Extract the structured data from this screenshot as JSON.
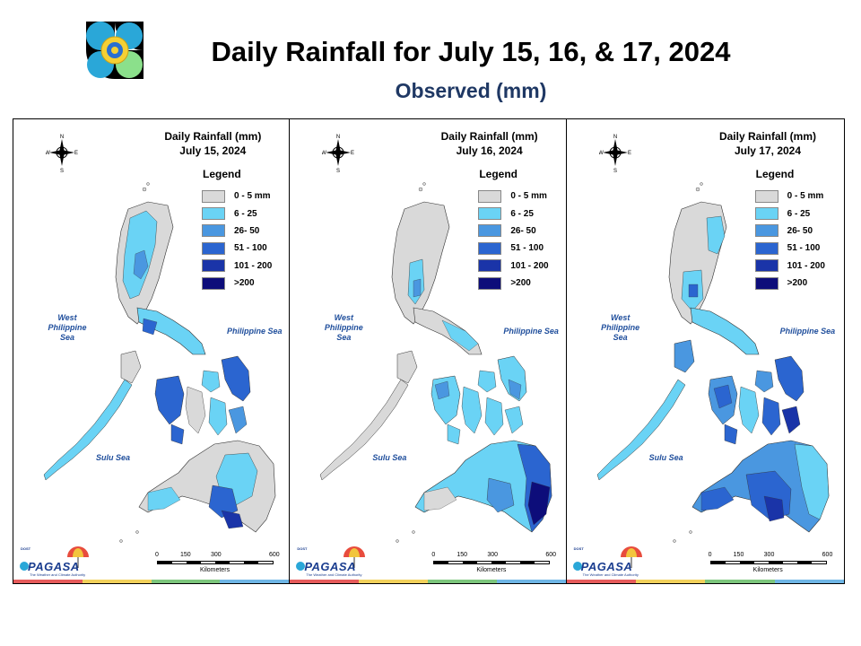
{
  "header": {
    "title": "Daily Rainfall for July 15, 16, & 17, 2024",
    "subtitle": "Observed (mm)"
  },
  "legend": {
    "title": "Legend",
    "classes": [
      {
        "label": "0 - 5 mm",
        "color": "#d9d9d9"
      },
      {
        "label": "6 - 25",
        "color": "#6ad3f5"
      },
      {
        "label": "26- 50",
        "color": "#4a97e0"
      },
      {
        "label": "51 - 100",
        "color": "#2b65d0"
      },
      {
        "label": "101 - 200",
        "color": "#1a34a8"
      },
      {
        "label": ">200",
        "color": "#0d0d7a"
      }
    ]
  },
  "panels": [
    {
      "title_line1": "Daily Rainfall (mm)",
      "title_line2": "July 15, 2024"
    },
    {
      "title_line1": "Daily Rainfall (mm)",
      "title_line2": "July 16, 2024"
    },
    {
      "title_line1": "Daily Rainfall (mm)",
      "title_line2": "July 17, 2024"
    }
  ],
  "seas": {
    "west_line1": "West",
    "west_line2": "Philippine Sea",
    "east": "Philippine Sea",
    "sulu": "Sulu Sea"
  },
  "compass": {
    "n": "N",
    "s": "S",
    "e": "E",
    "w": "W"
  },
  "scale": {
    "ticks": [
      "0",
      "150",
      "300",
      "600"
    ],
    "unit": "Kilometers"
  },
  "brand": {
    "dost": "DOST",
    "name": "PAGASA",
    "tagline": "The Weather and Climate Authority"
  },
  "colors": {
    "footer": [
      "#e65b5b",
      "#f2d15c",
      "#7cc67c",
      "#6fb6e6"
    ]
  }
}
